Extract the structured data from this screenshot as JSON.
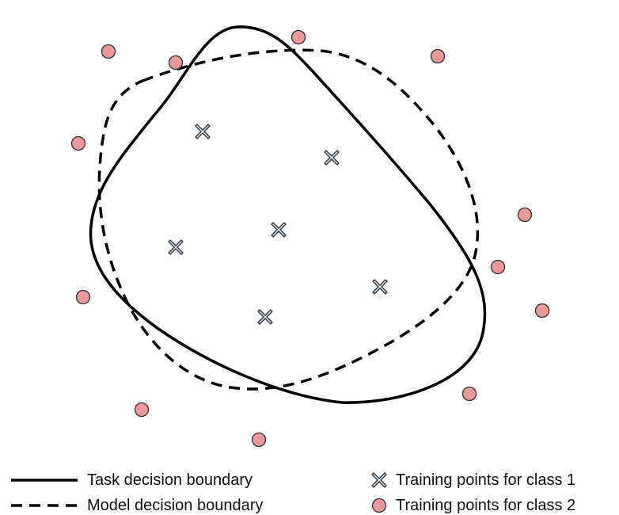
{
  "legend": {
    "task_boundary": "Task decision boundary",
    "model_boundary": "Model decision boundary",
    "class1": "Training points for class 1",
    "class2": "Training points for class 2"
  },
  "colors": {
    "line": "#000000",
    "class1_fill": "#cfe2f3",
    "class2_fill": "#ea9999",
    "marker_stroke": "#333333"
  },
  "icons": {
    "class1_marker": "x-cross-icon",
    "class2_marker": "circle-icon"
  }
}
